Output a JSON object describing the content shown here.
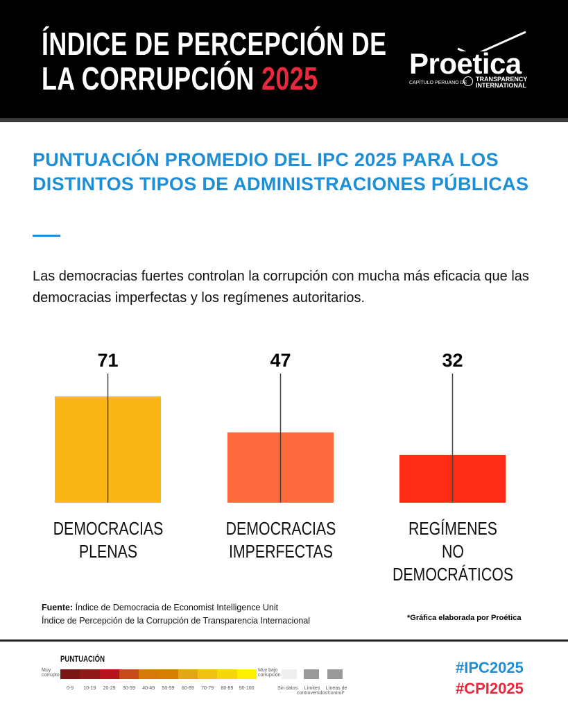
{
  "header": {
    "title_line1": "ÍNDICE DE PERCEPCIÓN DE",
    "title_line2": "LA CORRUPCIÓN",
    "title_year": "2025",
    "logo": {
      "name": "Proetica",
      "subtitle": "CAPÍTULO PERUANO DE",
      "partner": "TRANSPARENCY INTERNATIONAL"
    }
  },
  "subtitle": "PUNTUACIÓN PROMEDIO DEL IPC 2025 PARA LOS DISTINTOS TIPOS DE ADMINISTRACIONES PÚBLICAS",
  "lead": "Las democracias fuertes controlan la corrupción con mucha más eficacia que las democracias imperfectas y los regímenes autoritarios.",
  "chart_data": {
    "type": "bar",
    "categories": [
      "DEMOCRACIAS PLENAS",
      "DEMOCRACIAS IMPERFECTAS",
      "REGÍMENES NO DEMOCRÁTICOS"
    ],
    "cat_lines": [
      [
        "DEMOCRACIAS",
        "PLENAS"
      ],
      [
        "DEMOCRACIAS",
        "IMPERFECTAS"
      ],
      [
        "REGÍMENES",
        "NO DEMOCRÁTICOS"
      ]
    ],
    "values": [
      71,
      47,
      32
    ],
    "colors": [
      "#FBB615",
      "#FF6A3D",
      "#FF2B12"
    ],
    "ylim": [
      0,
      100
    ],
    "title": "",
    "xlabel": "",
    "ylabel": ""
  },
  "source": {
    "label": "Fuente:",
    "line1": "Índice de Democracia de Economist Intelligence Unit",
    "line2": "Índice de Percepción de la Corrupción de Transparencia Internacional"
  },
  "credit": "*Gráfica elaborada por Proética",
  "legend": {
    "title": "PUNTUACIÓN",
    "low": "Muy corrupto",
    "high": "Muy bajo corrupción",
    "ranges": [
      "0-9",
      "10-19",
      "20-29",
      "30-39",
      "40-49",
      "50-59",
      "60-69",
      "70-79",
      "80-89",
      "90-100"
    ],
    "colors": [
      "#7a1515",
      "#8e1a1a",
      "#b5141c",
      "#c84a1a",
      "#d6780a",
      "#d57e00",
      "#e3a614",
      "#eec20e",
      "#f5d80a",
      "#fff000"
    ],
    "extra": [
      "Sin datos",
      "Límites controvertidos*",
      "Líneas de control*"
    ]
  },
  "hashtags": [
    "#IPC2025",
    "#CPI2025"
  ],
  "hashtag_colors": [
    "#1e8fd6",
    "#e8283c"
  ]
}
